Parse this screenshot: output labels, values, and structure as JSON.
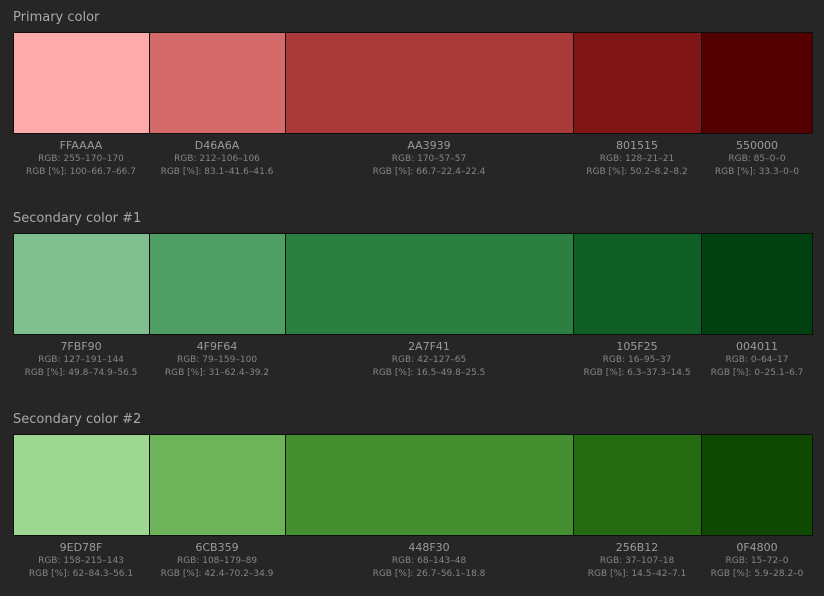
{
  "groups": [
    {
      "title": "Primary color",
      "swatches": [
        {
          "hex": "FFAAAA",
          "rgb": "RGB: 255–170–170",
          "rgbp": "RGB [%]: 100–66.7–66.7",
          "color": "#FFAAAA"
        },
        {
          "hex": "D46A6A",
          "rgb": "RGB: 212–106–106",
          "rgbp": "RGB [%]: 83.1–41.6–41.6",
          "color": "#D46A6A"
        },
        {
          "hex": "AA3939",
          "rgb": "RGB: 170–57–57",
          "rgbp": "RGB [%]: 66.7–22.4–22.4",
          "color": "#AA3939"
        },
        {
          "hex": "801515",
          "rgb": "RGB: 128–21–21",
          "rgbp": "RGB [%]: 50.2–8.2–8.2",
          "color": "#801515"
        },
        {
          "hex": "550000",
          "rgb": "RGB: 85–0–0",
          "rgbp": "RGB [%]: 33.3–0–0",
          "color": "#550000"
        }
      ]
    },
    {
      "title": "Secondary color #1",
      "swatches": [
        {
          "hex": "7FBF90",
          "rgb": "RGB: 127–191–144",
          "rgbp": "RGB [%]: 49.8–74.9–56.5",
          "color": "#7FBF90"
        },
        {
          "hex": "4F9F64",
          "rgb": "RGB: 79–159–100",
          "rgbp": "RGB [%]: 31–62.4–39.2",
          "color": "#4F9F64"
        },
        {
          "hex": "2A7F41",
          "rgb": "RGB: 42–127–65",
          "rgbp": "RGB [%]: 16.5–49.8–25.5",
          "color": "#2A7F41"
        },
        {
          "hex": "105F25",
          "rgb": "RGB: 16–95–37",
          "rgbp": "RGB [%]: 6.3–37.3–14.5",
          "color": "#105F25"
        },
        {
          "hex": "004011",
          "rgb": "RGB: 0–64–17",
          "rgbp": "RGB [%]: 0–25.1–6.7",
          "color": "#004011"
        }
      ]
    },
    {
      "title": "Secondary color #2",
      "swatches": [
        {
          "hex": "9ED78F",
          "rgb": "RGB: 158–215–143",
          "rgbp": "RGB [%]: 62–84.3–56.1",
          "color": "#9ED78F"
        },
        {
          "hex": "6CB359",
          "rgb": "RGB: 108–179–89",
          "rgbp": "RGB [%]: 42.4–70.2–34.9",
          "color": "#6CB359"
        },
        {
          "hex": "448F30",
          "rgb": "RGB: 68–143–48",
          "rgbp": "RGB [%]: 26.7–56.1–18.8",
          "color": "#448F30"
        },
        {
          "hex": "256B12",
          "rgb": "RGB: 37–107–18",
          "rgbp": "RGB [%]: 14.5–42–7.1",
          "color": "#256B12"
        },
        {
          "hex": "0F4800",
          "rgb": "RGB: 15–72–0",
          "rgbp": "RGB [%]: 5.9–28.2–0",
          "color": "#0F4800"
        }
      ]
    }
  ]
}
